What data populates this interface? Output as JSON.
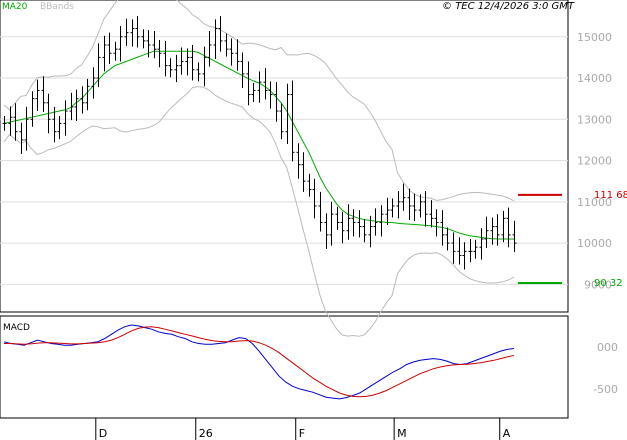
{
  "copyright": "© TEC 12/4/2026 3:0 GMT",
  "legend": {
    "ma_label": "MA20",
    "bb_label": "BBands",
    "ma_color": "#00aa00",
    "bb_color": "#bbbbbb"
  },
  "colors": {
    "resistance": "#cc0000",
    "support": "#00aa00",
    "macd": "#0000cc",
    "signal": "#cc0000",
    "bars": "#000000",
    "grid": "#dddddd"
  },
  "x_labels": [
    "D",
    "26",
    "F",
    "M",
    "A"
  ],
  "chart_data": [
    {
      "type": "ohlc",
      "y_ticks": [
        "15000",
        "14000",
        "13000",
        "12000",
        "11000",
        "10000",
        "9000"
      ],
      "ylim": [
        8500,
        15600
      ],
      "price_levels": [
        {
          "label": "111 68",
          "value": 11168,
          "role": "resistance"
        },
        {
          "label": "90 32",
          "value": 9032,
          "role": "support"
        }
      ],
      "series": [
        {
          "name": "close",
          "values": [
            12900,
            13050,
            12700,
            12500,
            13000,
            13500,
            13700,
            13400,
            13000,
            12700,
            12900,
            13200,
            13300,
            13500,
            13400,
            13800,
            14000,
            14500,
            14800,
            14600,
            14700,
            15000,
            15100,
            15200,
            15000,
            14900,
            14800,
            14700,
            14600,
            14300,
            14200,
            14300,
            14400,
            14500,
            14200,
            14100,
            14500,
            14800,
            15200,
            14900,
            14700,
            14600,
            14400,
            14100,
            13600,
            13700,
            13900,
            13700,
            13600,
            13200,
            12700,
            13600,
            12200,
            11900,
            11500,
            11300,
            10900,
            10500,
            10200,
            10700,
            10500,
            10300,
            10600,
            10500,
            10400,
            10200,
            10400,
            10500,
            10700,
            10800,
            10900,
            11000,
            11100,
            10900,
            10800,
            11000,
            10700,
            10600,
            10500,
            10200,
            10000,
            9800,
            9700,
            9800,
            9800,
            9900,
            10100,
            10300,
            10400,
            10200,
            10600,
            10200,
            10000
          ]
        },
        {
          "name": "MA20",
          "values": [
            12900,
            12930,
            12960,
            12990,
            13020,
            13050,
            13080,
            13110,
            13140,
            13170,
            13200,
            13230,
            13280,
            13400,
            13500,
            13650,
            13800,
            13950,
            14100,
            14200,
            14300,
            14350,
            14400,
            14450,
            14500,
            14550,
            14600,
            14650,
            14650,
            14650,
            14650,
            14650,
            14650,
            14650,
            14650,
            14620,
            14550,
            14480,
            14410,
            14340,
            14270,
            14200,
            14130,
            14060,
            13990,
            13930,
            13880,
            13800,
            13700,
            13550,
            13400,
            13200,
            12950,
            12700,
            12450,
            12200,
            11900,
            11600,
            11350,
            11150,
            10950,
            10800,
            10700,
            10650,
            10600,
            10570,
            10550,
            10530,
            10520,
            10500,
            10500,
            10480,
            10470,
            10460,
            10450,
            10440,
            10430,
            10420,
            10400,
            10380,
            10350,
            10300,
            10250,
            10210,
            10180,
            10160,
            10140,
            10120,
            10110,
            10100,
            10100,
            10100,
            10100
          ]
        }
      ]
    },
    {
      "type": "line",
      "title": "MACD",
      "y_ticks": [
        "000",
        "-500"
      ],
      "ylim": [
        -800,
        320
      ],
      "series": [
        {
          "name": "MACD",
          "values": [
            60,
            40,
            30,
            20,
            50,
            80,
            60,
            40,
            30,
            20,
            20,
            30,
            40,
            50,
            60,
            100,
            150,
            200,
            240,
            260,
            250,
            230,
            210,
            180,
            160,
            150,
            120,
            100,
            60,
            40,
            30,
            30,
            40,
            50,
            80,
            110,
            100,
            40,
            -50,
            -150,
            -250,
            -350,
            -420,
            -470,
            -500,
            -520,
            -540,
            -570,
            -600,
            -610,
            -620,
            -605,
            -580,
            -550,
            -500,
            -450,
            -400,
            -350,
            -300,
            -260,
            -210,
            -180,
            -160,
            -150,
            -140,
            -150,
            -170,
            -200,
            -210,
            -200,
            -170,
            -140,
            -110,
            -80,
            -50,
            -30,
            -20
          ]
        },
        {
          "name": "Signal",
          "values": [
            40,
            40,
            35,
            30,
            35,
            45,
            50,
            50,
            45,
            40,
            35,
            35,
            40,
            45,
            50,
            60,
            80,
            110,
            150,
            190,
            220,
            235,
            240,
            230,
            210,
            190,
            170,
            150,
            130,
            110,
            90,
            75,
            65,
            60,
            62,
            70,
            75,
            70,
            50,
            20,
            -20,
            -70,
            -130,
            -190,
            -250,
            -310,
            -370,
            -420,
            -470,
            -510,
            -550,
            -575,
            -590,
            -595,
            -590,
            -575,
            -550,
            -520,
            -480,
            -440,
            -400,
            -360,
            -320,
            -290,
            -260,
            -240,
            -225,
            -215,
            -210,
            -208,
            -200,
            -190,
            -175,
            -160,
            -140,
            -120,
            -100
          ]
        }
      ]
    }
  ]
}
